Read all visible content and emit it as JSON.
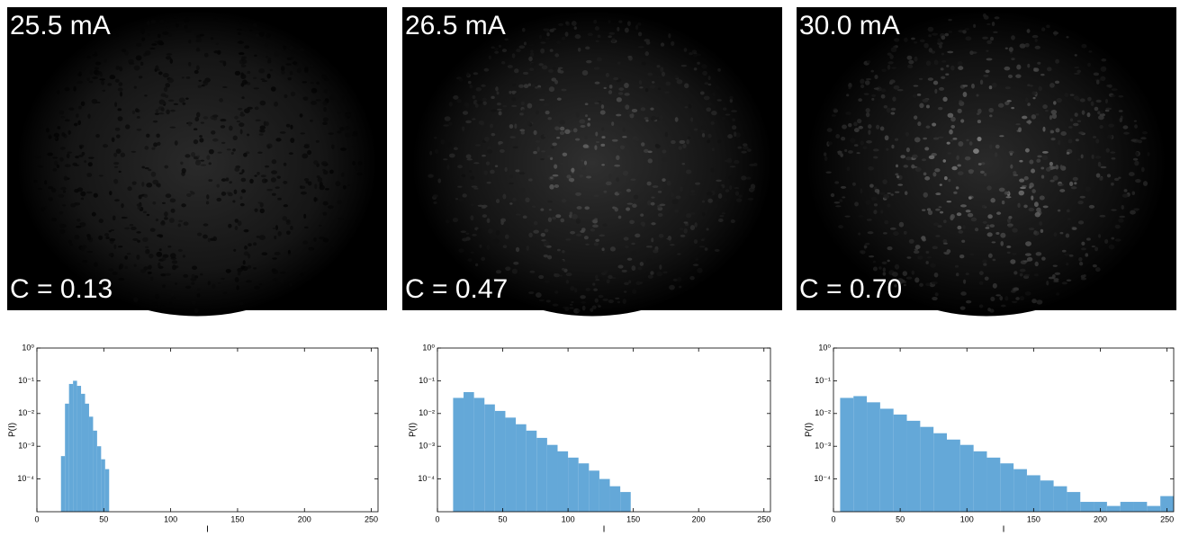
{
  "images": [
    {
      "current": "25.5 mA",
      "contrast": "C = 0.13"
    },
    {
      "current": "26.5 mA",
      "contrast": "C = 0.47"
    },
    {
      "current": "30.0 mA",
      "contrast": "C = 0.70"
    }
  ],
  "chart_data": [
    {
      "type": "histogram",
      "xlabel": "I",
      "ylabel": "P(I)",
      "color": "#64a8d8",
      "log_y": true,
      "bins": [
        18,
        21,
        24,
        27,
        30,
        33,
        36,
        39,
        42,
        45,
        48,
        51,
        54
      ],
      "values": [
        0.0005,
        0.02,
        0.08,
        0.1,
        0.07,
        0.04,
        0.02,
        0.008,
        0.003,
        0.001,
        0.0004,
        0.0002
      ],
      "xlim": [
        0,
        255
      ],
      "xticks": [
        0,
        50,
        100,
        150,
        200,
        250
      ],
      "ylim": [
        1e-05,
        1
      ],
      "yticks": [
        {
          "value": 1,
          "label": "10⁰"
        },
        {
          "value": 0.1,
          "label": "10⁻¹"
        },
        {
          "value": 0.01,
          "label": "10⁻²"
        },
        {
          "value": 0.001,
          "label": "10⁻³"
        },
        {
          "value": 0.0001,
          "label": "10⁻⁴"
        }
      ]
    },
    {
      "type": "histogram",
      "xlabel": "I",
      "ylabel": "P(I)",
      "color": "#64a8d8",
      "log_y": true,
      "bins": [
        12,
        20,
        28,
        36,
        44,
        52,
        60,
        68,
        76,
        84,
        92,
        100,
        108,
        116,
        124,
        132,
        140,
        148
      ],
      "values": [
        0.03,
        0.045,
        0.03,
        0.019,
        0.012,
        0.0075,
        0.0047,
        0.003,
        0.0018,
        0.0011,
        0.0007,
        0.00045,
        0.0003,
        0.00018,
        0.0001,
        6e-05,
        4e-05
      ],
      "xlim": [
        0,
        255
      ],
      "xticks": [
        0,
        50,
        100,
        150,
        200,
        250
      ],
      "ylim": [
        1e-05,
        1
      ],
      "yticks": [
        {
          "value": 1,
          "label": "10⁰"
        },
        {
          "value": 0.1,
          "label": "10⁻¹"
        },
        {
          "value": 0.01,
          "label": "10⁻²"
        },
        {
          "value": 0.001,
          "label": "10⁻³"
        },
        {
          "value": 0.0001,
          "label": "10⁻⁴"
        }
      ]
    },
    {
      "type": "histogram",
      "xlabel": "I",
      "ylabel": "P(I)",
      "color": "#64a8d8",
      "log_y": true,
      "bins": [
        5,
        15,
        25,
        35,
        45,
        55,
        65,
        75,
        85,
        95,
        105,
        115,
        125,
        135,
        145,
        155,
        165,
        175,
        185,
        195,
        205,
        215,
        225,
        235,
        245,
        255
      ],
      "values": [
        0.03,
        0.034,
        0.022,
        0.014,
        0.0093,
        0.006,
        0.0039,
        0.0025,
        0.0016,
        0.0011,
        0.0007,
        0.00045,
        0.0003,
        0.0002,
        0.00013,
        9e-05,
        6e-05,
        4e-05,
        2e-05,
        2e-05,
        1.5e-05,
        2e-05,
        2e-05,
        1.5e-05,
        3e-05
      ],
      "xlim": [
        0,
        255
      ],
      "xticks": [
        0,
        50,
        100,
        150,
        200,
        250
      ],
      "ylim": [
        1e-05,
        1
      ],
      "yticks": [
        {
          "value": 1,
          "label": "10⁰"
        },
        {
          "value": 0.1,
          "label": "10⁻¹"
        },
        {
          "value": 0.01,
          "label": "10⁻²"
        },
        {
          "value": 0.001,
          "label": "10⁻³"
        },
        {
          "value": 0.0001,
          "label": "10⁻⁴"
        }
      ]
    }
  ]
}
